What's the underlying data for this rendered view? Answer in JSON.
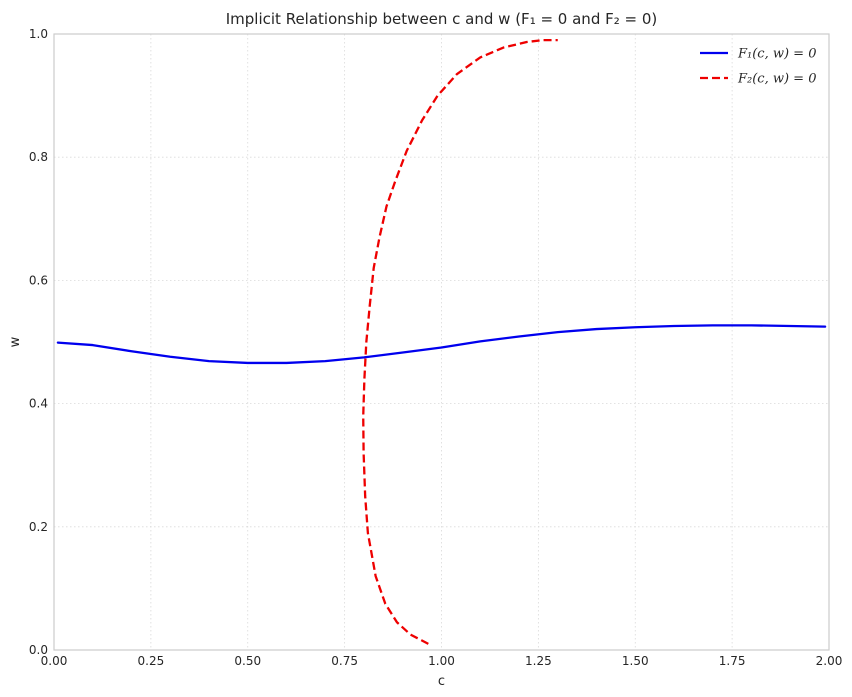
{
  "chart_data": {
    "type": "line",
    "title": "Implicit Relationship between c and w (F₁ = 0 and F₂ = 0)",
    "xlabel": "c",
    "ylabel": "w",
    "xlim": [
      0,
      2
    ],
    "ylim": [
      0,
      1
    ],
    "xticks": [
      "0.00",
      "0.25",
      "0.50",
      "0.75",
      "1.00",
      "1.25",
      "1.50",
      "1.75",
      "2.00"
    ],
    "yticks": [
      "0.0",
      "0.2",
      "0.4",
      "0.6",
      "0.8",
      "1.0"
    ],
    "grid": true,
    "legend_position": "top-right",
    "series": [
      {
        "name": "F₁(c, w) = 0",
        "color": "#0000ee",
        "style": "solid",
        "x": [
          0.01,
          0.1,
          0.2,
          0.3,
          0.4,
          0.5,
          0.6,
          0.7,
          0.8,
          0.9,
          1.0,
          1.1,
          1.2,
          1.3,
          1.4,
          1.5,
          1.6,
          1.7,
          1.8,
          1.9,
          1.99
        ],
        "y": [
          0.499,
          0.495,
          0.485,
          0.476,
          0.469,
          0.466,
          0.466,
          0.469,
          0.475,
          0.483,
          0.491,
          0.501,
          0.509,
          0.516,
          0.521,
          0.524,
          0.526,
          0.527,
          0.527,
          0.526,
          0.525
        ]
      },
      {
        "name": "F₂(c, w) = 0",
        "color": "#ee0000",
        "style": "dashed",
        "x": [
          0.966,
          0.92,
          0.885,
          0.855,
          0.83,
          0.81,
          0.803,
          0.799,
          0.798,
          0.801,
          0.806,
          0.815,
          0.825,
          0.84,
          0.858,
          0.88,
          0.91,
          0.95,
          0.99,
          1.04,
          1.1,
          1.16,
          1.22,
          1.26,
          1.3
        ],
        "y": [
          0.01,
          0.025,
          0.045,
          0.075,
          0.12,
          0.19,
          0.25,
          0.32,
          0.38,
          0.44,
          0.5,
          0.56,
          0.62,
          0.67,
          0.72,
          0.76,
          0.81,
          0.86,
          0.9,
          0.935,
          0.962,
          0.978,
          0.987,
          0.99,
          0.99
        ]
      }
    ]
  }
}
